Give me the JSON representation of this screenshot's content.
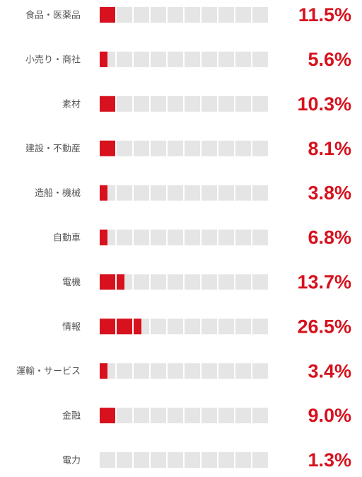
{
  "colors": {
    "accent": "#d7111d",
    "track": "#e5e5e5",
    "label": "#555555"
  },
  "chart_data": {
    "type": "bar",
    "categories": [
      "食品・医薬品",
      "小売り・商社",
      "素材",
      "建設・不動産",
      "造船・機械",
      "自動車",
      "電機",
      "情報",
      "運輸・サービス",
      "金融",
      "電力"
    ],
    "values": [
      11.5,
      5.6,
      10.3,
      8.1,
      3.8,
      6.8,
      13.7,
      26.5,
      3.4,
      9.0,
      1.3
    ],
    "value_labels": [
      "11.5%",
      "5.6%",
      "10.3%",
      "8.1%",
      "3.8%",
      "6.8%",
      "13.7%",
      "26.5%",
      "3.4%",
      "9.0%",
      "1.3%"
    ],
    "filled_segments": [
      1,
      0.5,
      1,
      1,
      0.5,
      0.5,
      1.5,
      2.5,
      0.5,
      1,
      0
    ],
    "segments_per_row": 10,
    "grid": false,
    "legend": "none",
    "title": "",
    "xlabel": "",
    "ylabel": ""
  }
}
